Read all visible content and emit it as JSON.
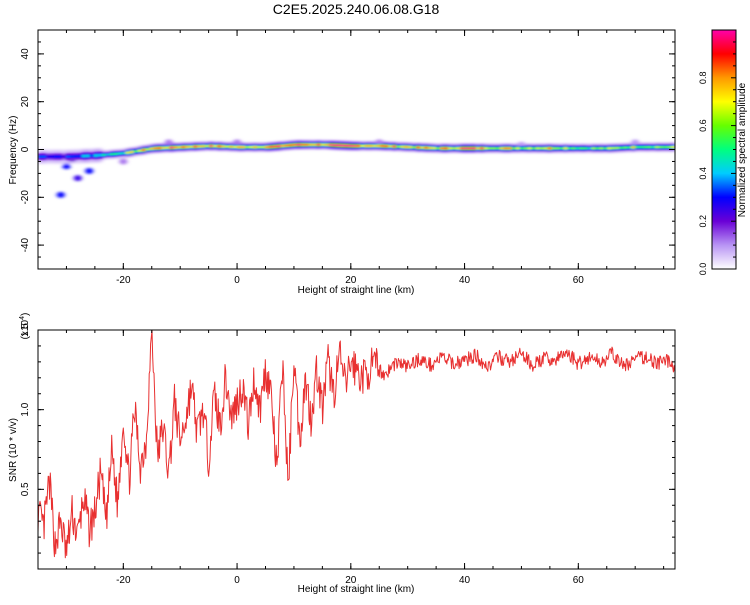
{
  "figure": {
    "title": "C2E5.2025.240.06.08.G18"
  },
  "chart_data": [
    {
      "type": "heatmap",
      "xlabel": "Height of straight line (km)",
      "ylabel": "Frequency (Hz)",
      "xlim": [
        -35,
        77
      ],
      "ylim": [
        -50,
        50
      ],
      "xticks": [
        -20,
        0,
        20,
        40,
        60
      ],
      "yticks": [
        -40,
        -20,
        0,
        20,
        40
      ],
      "grid": false,
      "colorbar": {
        "label": "Normalized spectral amplitude",
        "range": [
          0,
          1
        ],
        "ticks": [
          "0.0",
          "0.2",
          "0.4",
          "0.6",
          "0.8"
        ],
        "colormap": [
          "#ffffff",
          "#b894f4",
          "#6a00d6",
          "#0000ff",
          "#00ccff",
          "#00ff7f",
          "#66ff00",
          "#ffff00",
          "#ff9900",
          "#ff0000",
          "#ff00aa"
        ]
      },
      "ridge": {
        "description_points_x": [
          -35,
          -30,
          -25,
          -20,
          -15,
          -10,
          -5,
          0,
          5,
          10,
          15,
          20,
          25,
          30,
          35,
          40,
          45,
          50,
          55,
          60,
          65,
          70,
          77
        ],
        "center_freq_hz": [
          -3,
          -3,
          -2.5,
          -1.5,
          0.5,
          1,
          1.5,
          1,
          1,
          2,
          2,
          1.5,
          1.5,
          1,
          0.5,
          0.5,
          0.5,
          0.5,
          0.5,
          0.5,
          0.5,
          1,
          1
        ],
        "peak_amplitude": [
          0.35,
          0.3,
          0.45,
          0.6,
          0.85,
          0.9,
          0.85,
          0.75,
          0.9,
          0.92,
          0.9,
          0.95,
          0.85,
          0.8,
          0.75,
          0.95,
          0.8,
          0.7,
          0.8,
          0.6,
          0.6,
          0.7,
          0.6
        ]
      }
    },
    {
      "type": "line",
      "xlabel": "Height of straight line (km)",
      "ylabel": "SNR (10 * v/v)",
      "yscale_label": "(x10",
      "yscale_exp": "4",
      "xlim": [
        -35,
        77
      ],
      "ylim": [
        0,
        1.5
      ],
      "xticks": [
        -20,
        0,
        20,
        40,
        60
      ],
      "yticks": [
        "0.5",
        "1.0",
        "1.5"
      ],
      "grid": false,
      "series": [
        {
          "color": "#e83030",
          "x": [
            -35,
            -34,
            -33,
            -32,
            -31,
            -30,
            -29,
            -28,
            -27,
            -26,
            -25,
            -24,
            -23,
            -22,
            -21,
            -20,
            -19,
            -18,
            -17,
            -16,
            -15,
            -14,
            -13,
            -12,
            -11,
            -10,
            -9,
            -8,
            -7,
            -6,
            -5,
            -4,
            -3,
            -2,
            -1,
            0,
            1,
            2,
            3,
            4,
            5,
            6,
            7,
            8,
            9,
            10,
            11,
            12,
            13,
            14,
            15,
            16,
            17,
            18,
            19,
            20,
            22,
            24,
            26,
            28,
            30,
            32,
            34,
            36,
            38,
            40,
            42,
            44,
            46,
            48,
            50,
            52,
            54,
            56,
            58,
            60,
            62,
            64,
            66,
            68,
            70,
            72,
            74,
            76,
            77
          ],
          "y": [
            0.35,
            0.25,
            0.55,
            0.15,
            0.3,
            0.1,
            0.35,
            0.2,
            0.45,
            0.25,
            0.35,
            0.6,
            0.3,
            0.75,
            0.4,
            0.95,
            0.55,
            1.0,
            0.65,
            0.8,
            1.5,
            0.7,
            0.9,
            0.6,
            1.05,
            0.8,
            0.95,
            1.15,
            0.85,
            1.0,
            0.7,
            1.1,
            0.9,
            1.2,
            0.95,
            1.05,
            1.15,
            0.9,
            1.2,
            1.0,
            1.25,
            1.1,
            0.6,
            1.3,
            0.5,
            1.35,
            0.8,
            1.2,
            0.95,
            1.25,
            1.0,
            1.3,
            1.1,
            1.35,
            1.15,
            1.3,
            1.2,
            1.28,
            1.22,
            1.3,
            1.27,
            1.32,
            1.28,
            1.33,
            1.29,
            1.31,
            1.34,
            1.27,
            1.33,
            1.3,
            1.35,
            1.28,
            1.32,
            1.31,
            1.36,
            1.29,
            1.33,
            1.3,
            1.35,
            1.27,
            1.32,
            1.33,
            1.29,
            1.31,
            1.25
          ]
        }
      ]
    }
  ]
}
